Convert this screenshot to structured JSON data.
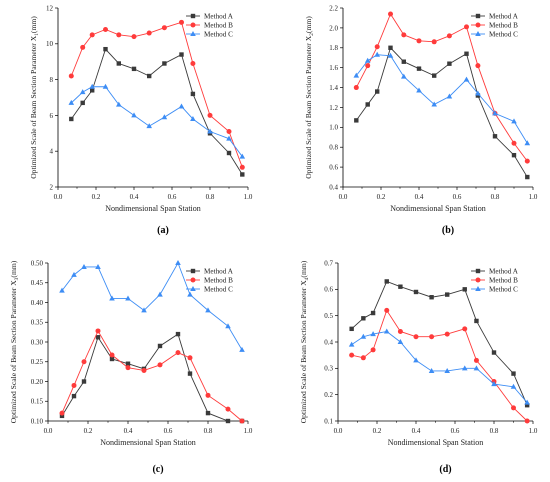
{
  "chart_data": [
    {
      "id": "a",
      "type": "line",
      "panel_label": "(a)",
      "xlabel": "Nondimensional Span Station",
      "ylabel": "Optimized Scale of Beam Section Parameter X",
      "ylabel_sub": "1",
      "ylabel_unit": "(mm)",
      "xlim": [
        0.0,
        1.0
      ],
      "ylim": [
        2,
        12
      ],
      "xticks": [
        0.0,
        0.2,
        0.4,
        0.6,
        0.8,
        1.0
      ],
      "yticks": [
        2,
        4,
        6,
        8,
        10,
        12
      ],
      "x": [
        0.07,
        0.13,
        0.18,
        0.25,
        0.32,
        0.4,
        0.48,
        0.56,
        0.65,
        0.71,
        0.8,
        0.9,
        0.97
      ],
      "legend_position": "top-right",
      "grid": false,
      "series": [
        {
          "name": "Method A",
          "color": "#3a3a3a",
          "marker": "square",
          "values": [
            5.8,
            6.7,
            7.4,
            9.7,
            8.9,
            8.6,
            8.2,
            8.9,
            9.4,
            7.2,
            5.0,
            3.9,
            2.7
          ]
        },
        {
          "name": "Method B",
          "color": "#ff3b3b",
          "marker": "circle",
          "values": [
            8.2,
            9.8,
            10.5,
            10.8,
            10.5,
            10.4,
            10.6,
            10.9,
            11.2,
            8.9,
            6.0,
            5.1,
            3.1
          ]
        },
        {
          "name": "Method C",
          "color": "#3d8df5",
          "marker": "triangle",
          "values": [
            6.7,
            7.3,
            7.6,
            7.6,
            6.6,
            6.0,
            5.4,
            5.9,
            6.5,
            5.8,
            5.1,
            4.7,
            3.7
          ]
        }
      ]
    },
    {
      "id": "b",
      "type": "line",
      "panel_label": "(b)",
      "xlabel": "Nondimensional Span Station",
      "ylabel": "Optimized Scale of Beam Section Parameter X",
      "ylabel_sub": "2",
      "ylabel_unit": "(mm)",
      "xlim": [
        0.0,
        1.0
      ],
      "ylim": [
        0.4,
        2.2
      ],
      "xticks": [
        0.0,
        0.2,
        0.4,
        0.6,
        0.8,
        1.0
      ],
      "yticks": [
        0.4,
        0.6,
        0.8,
        1.0,
        1.2,
        1.4,
        1.6,
        1.8,
        2.0,
        2.2
      ],
      "x": [
        0.07,
        0.13,
        0.18,
        0.25,
        0.32,
        0.4,
        0.48,
        0.56,
        0.65,
        0.71,
        0.8,
        0.9,
        0.97
      ],
      "legend_position": "top-right",
      "grid": false,
      "series": [
        {
          "name": "Method A",
          "color": "#3a3a3a",
          "marker": "square",
          "values": [
            1.07,
            1.23,
            1.36,
            1.8,
            1.66,
            1.59,
            1.52,
            1.64,
            1.74,
            1.32,
            0.91,
            0.72,
            0.5
          ]
        },
        {
          "name": "Method B",
          "color": "#ff3b3b",
          "marker": "circle",
          "values": [
            1.4,
            1.62,
            1.81,
            2.14,
            1.93,
            1.87,
            1.86,
            1.92,
            2.01,
            1.62,
            1.14,
            0.84,
            0.66
          ]
        },
        {
          "name": "Method C",
          "color": "#3d8df5",
          "marker": "triangle",
          "values": [
            1.52,
            1.67,
            1.73,
            1.72,
            1.51,
            1.37,
            1.23,
            1.31,
            1.48,
            1.34,
            1.14,
            1.06,
            0.84
          ]
        }
      ]
    },
    {
      "id": "c",
      "type": "line",
      "panel_label": "(c)",
      "xlabel": "Nondimensional Span Station",
      "ylabel": "Optimized Scale of Beam Section Parameter X",
      "ylabel_sub": "3",
      "ylabel_unit": "(mm)",
      "xlim": [
        0.0,
        1.0
      ],
      "ylim": [
        0.1,
        0.5
      ],
      "xticks": [
        0.0,
        0.2,
        0.4,
        0.6,
        0.8,
        1.0
      ],
      "yticks": [
        0.1,
        0.15,
        0.2,
        0.25,
        0.3,
        0.35,
        0.4,
        0.45,
        0.5
      ],
      "x": [
        0.07,
        0.13,
        0.18,
        0.25,
        0.32,
        0.4,
        0.48,
        0.56,
        0.65,
        0.71,
        0.8,
        0.9,
        0.97
      ],
      "legend_position": "top-right",
      "grid": false,
      "series": [
        {
          "name": "Method A",
          "color": "#3a3a3a",
          "marker": "square",
          "values": [
            0.113,
            0.163,
            0.2,
            0.312,
            0.257,
            0.245,
            0.232,
            0.29,
            0.32,
            0.22,
            0.12,
            0.1,
            0.1
          ]
        },
        {
          "name": "Method B",
          "color": "#ff3b3b",
          "marker": "circle",
          "values": [
            0.12,
            0.19,
            0.25,
            0.328,
            0.267,
            0.235,
            0.228,
            0.242,
            0.273,
            0.26,
            0.165,
            0.13,
            0.1
          ]
        },
        {
          "name": "Method C",
          "color": "#3d8df5",
          "marker": "triangle",
          "values": [
            0.43,
            0.47,
            0.49,
            0.49,
            0.41,
            0.41,
            0.38,
            0.42,
            0.5,
            0.42,
            0.38,
            0.34,
            0.28
          ]
        }
      ]
    },
    {
      "id": "d",
      "type": "line",
      "panel_label": "(d)",
      "xlabel": "Nondimensional Span Station",
      "ylabel": "Optimized Scale of Beam Section Parameter X",
      "ylabel_sub": "4",
      "ylabel_unit": "(mm)",
      "xlim": [
        0.0,
        1.0
      ],
      "ylim": [
        0.1,
        0.7
      ],
      "xticks": [
        0.0,
        0.2,
        0.4,
        0.6,
        0.8,
        1.0
      ],
      "yticks": [
        0.1,
        0.2,
        0.3,
        0.4,
        0.5,
        0.6,
        0.7
      ],
      "x": [
        0.07,
        0.13,
        0.18,
        0.25,
        0.32,
        0.4,
        0.48,
        0.56,
        0.65,
        0.71,
        0.8,
        0.9,
        0.97
      ],
      "legend_position": "top-right",
      "grid": false,
      "series": [
        {
          "name": "Method A",
          "color": "#3a3a3a",
          "marker": "square",
          "values": [
            0.45,
            0.49,
            0.51,
            0.63,
            0.61,
            0.59,
            0.57,
            0.58,
            0.6,
            0.48,
            0.36,
            0.28,
            0.16
          ]
        },
        {
          "name": "Method B",
          "color": "#ff3b3b",
          "marker": "circle",
          "values": [
            0.35,
            0.34,
            0.37,
            0.52,
            0.44,
            0.42,
            0.42,
            0.43,
            0.45,
            0.33,
            0.25,
            0.15,
            0.1
          ]
        },
        {
          "name": "Method C",
          "color": "#3d8df5",
          "marker": "triangle",
          "values": [
            0.39,
            0.42,
            0.43,
            0.44,
            0.4,
            0.33,
            0.29,
            0.29,
            0.3,
            0.3,
            0.24,
            0.23,
            0.17
          ]
        }
      ]
    }
  ]
}
